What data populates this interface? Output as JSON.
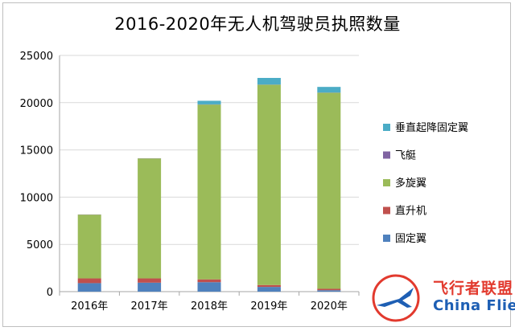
{
  "chart_data": {
    "type": "bar",
    "stacked": true,
    "title": "2016-2020年无人机驾驶员执照数量",
    "xlabel": "",
    "ylabel": "",
    "categories": [
      "2016年",
      "2017年",
      "2018年",
      "2019年",
      "2020年"
    ],
    "ylim": [
      0,
      25000
    ],
    "yticks": [
      "0",
      "5000",
      "10000",
      "15000",
      "20000",
      "25000"
    ],
    "legend_position": "right",
    "gridlines": true,
    "series": [
      {
        "name": "固定翼",
        "color": "#4f81bd",
        "values": [
          900,
          950,
          1000,
          500,
          150
        ]
      },
      {
        "name": "直升机",
        "color": "#c0504d",
        "values": [
          500,
          450,
          300,
          200,
          150
        ]
      },
      {
        "name": "多旋翼",
        "color": "#9bbb59",
        "values": [
          6750,
          12700,
          18500,
          21200,
          20750
        ]
      },
      {
        "name": "飞艇",
        "color": "#8064a2",
        "values": [
          20,
          20,
          20,
          20,
          20
        ]
      },
      {
        "name": "垂直起降固定翼",
        "color": "#4bacc6",
        "values": [
          0,
          0,
          380,
          700,
          600
        ]
      }
    ]
  },
  "legend_order": [
    "垂直起降固定翼",
    "飞艇",
    "多旋翼",
    "直升机",
    "固定翼"
  ],
  "watermark": {
    "cn": "飞行者联盟",
    "en": "China Flier"
  }
}
